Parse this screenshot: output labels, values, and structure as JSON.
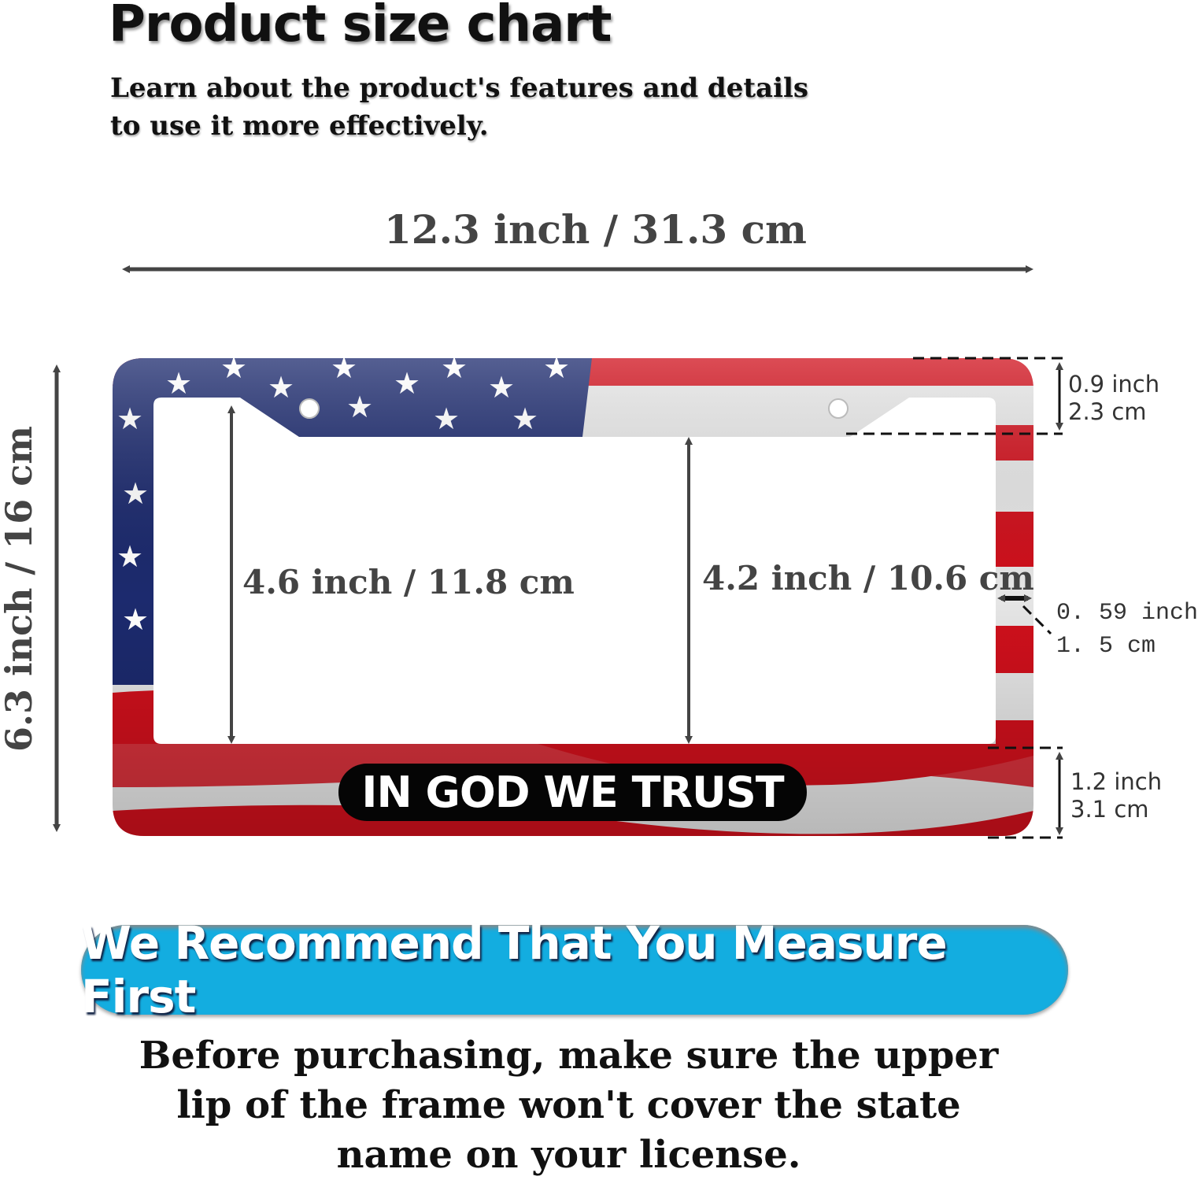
{
  "header": {
    "title": "Product size chart",
    "subtitle_line1": "Learn about the product's features and details",
    "subtitle_line2": "to use it more effectively."
  },
  "dimensions": {
    "width": "12.3 inch / 31.3 cm",
    "height": "6.3 inch / 16 cm",
    "left_opening": "4.6 inch / 11.8 cm",
    "right_opening": "4.2 inch / 10.6 cm",
    "top_lip_inch": "0.9 inch",
    "top_lip_cm": "2.3 cm",
    "side_inch": "0. 59 inch",
    "side_cm": "1. 5 cm",
    "bottom_inch": "1.2 inch",
    "bottom_cm": "3.1 cm"
  },
  "product": {
    "badge_text": "IN GOD WE TRUST",
    "colors": {
      "red": "#d0101c",
      "blue": "#1c2a6e",
      "white": "#e8e8e8"
    }
  },
  "banner": {
    "text": "We Recommend That You Measure First",
    "color": "#13ade0"
  },
  "note": {
    "line1": "Before purchasing, make sure the upper",
    "line2": "lip of the frame won't cover the state",
    "line3": "name on your license."
  }
}
